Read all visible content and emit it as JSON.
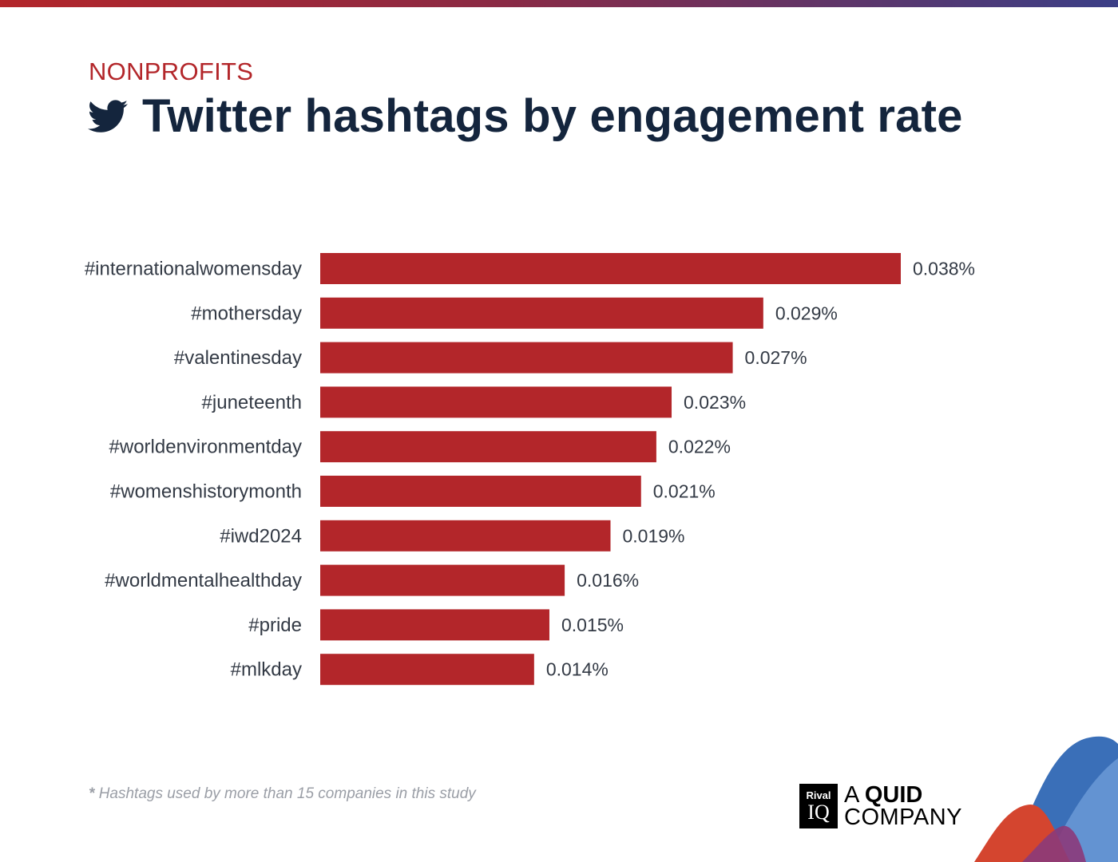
{
  "header": {
    "kicker": "NONPROFITS",
    "title": "Twitter hashtags by engagement rate",
    "icon": "twitter-bird-icon"
  },
  "footnote": {
    "star": "*",
    "text": "Hashtags used by more than 15 companies in this study"
  },
  "brand": {
    "badge_top": "Rival",
    "badge_bottom": "IQ",
    "line1_prefix": "A",
    "line1_bold": "QUID",
    "line2": "COMPANY"
  },
  "colors": {
    "bar": "#b3262a",
    "title": "#14253d",
    "kicker": "#b3262a"
  },
  "chart_data": {
    "type": "bar",
    "orientation": "horizontal",
    "title": "Twitter hashtags by engagement rate",
    "categories": [
      "#internationalwomensday",
      "#mothersday",
      "#valentinesday",
      "#juneteenth",
      "#worldenvironmentday",
      "#womenshistorymonth",
      "#iwd2024",
      "#worldmentalhealthday",
      "#pride",
      "#mlkday"
    ],
    "values": [
      0.038,
      0.029,
      0.027,
      0.023,
      0.022,
      0.021,
      0.019,
      0.016,
      0.015,
      0.014
    ],
    "value_labels": [
      "0.038%",
      "0.029%",
      "0.027%",
      "0.023%",
      "0.022%",
      "0.021%",
      "0.019%",
      "0.016%",
      "0.015%",
      "0.014%"
    ],
    "unit": "%",
    "xlim": [
      0,
      0.038
    ],
    "grid": false,
    "legend": "none"
  }
}
